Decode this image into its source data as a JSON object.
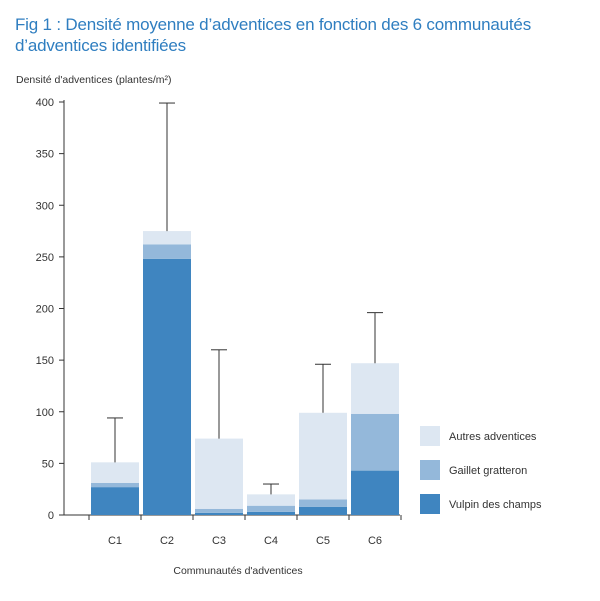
{
  "title": {
    "line1": "Fig 1 : Densité moyenne d’adventices en fonction des 6 communautés",
    "line2": "d’adventices identifiées"
  },
  "colors": {
    "title": "#2f7ec0",
    "vulpin": "#3f85c0",
    "gaillet": "#94b8da",
    "autres": "#dde7f2",
    "axis": "#333333",
    "error_bar": "#333333"
  },
  "chart_data": {
    "type": "bar",
    "stacked": true,
    "ylabel": "Densité d'adventices (plantes/m²)",
    "xlabel": "Communautés d'adventices",
    "ylim": [
      0,
      400
    ],
    "yticks": [
      "0",
      "50",
      "100",
      "150",
      "200",
      "250",
      "300",
      "350",
      "400"
    ],
    "categories": [
      "C1",
      "C2",
      "C3",
      "C4",
      "C5",
      "C6"
    ],
    "series": [
      {
        "name": "Vulpin des champs",
        "color_key": "vulpin",
        "values": [
          27,
          248,
          2,
          3,
          8,
          43
        ]
      },
      {
        "name": "Gaillet gratteron",
        "color_key": "gaillet",
        "values": [
          4,
          14,
          4,
          6,
          7,
          55
        ]
      },
      {
        "name": "Autres adventices",
        "color_key": "autres",
        "values": [
          20,
          13,
          68,
          11,
          84,
          49
        ]
      }
    ],
    "error_bar_top": [
      94,
      399,
      160,
      30,
      146,
      196
    ],
    "legend": [
      "Autres adventices",
      "Gaillet gratteron",
      "Vulpin des champs"
    ],
    "legend_position": "right"
  }
}
